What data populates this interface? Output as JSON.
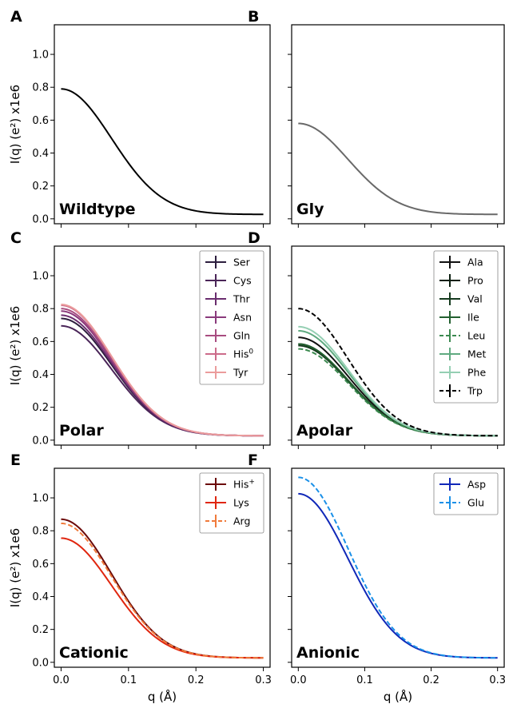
{
  "chart_data": [
    {
      "type": "line",
      "panel_letter": "A",
      "panel_title": "Wildtype",
      "xlabel": "",
      "ylabel": "I(q) (e²) x1e6",
      "xlim": [
        -0.01,
        0.31
      ],
      "ylim": [
        -0.03,
        1.18
      ],
      "xticks": [],
      "yticks": [
        "0.0",
        "0.2",
        "0.4",
        "0.6",
        "0.8",
        "1.0"
      ],
      "legend": "none",
      "series": [
        {
          "i0": 0.79,
          "color": "#000000",
          "dash": false,
          "errorbar": false
        }
      ]
    },
    {
      "type": "line",
      "panel_letter": "B",
      "panel_title": "Gly",
      "xlabel": "",
      "ylabel": "",
      "xlim": [
        -0.01,
        0.31
      ],
      "ylim": [
        -0.03,
        1.18
      ],
      "xticks": [],
      "yticks": [],
      "legend": "none",
      "series": [
        {
          "i0": 0.58,
          "color": "#696969",
          "dash": false,
          "errorbar": false
        }
      ]
    },
    {
      "type": "line",
      "panel_letter": "C",
      "panel_title": "Polar",
      "xlabel": "",
      "ylabel": "I(q) (e²) x1e6",
      "xlim": [
        -0.01,
        0.31
      ],
      "ylim": [
        -0.03,
        1.18
      ],
      "xticks": [],
      "yticks": [
        "0.0",
        "0.2",
        "0.4",
        "0.6",
        "0.8",
        "1.0"
      ],
      "legend": "top-right",
      "series": [
        {
          "name": "Ser",
          "name_sup": "",
          "i0": 0.74,
          "color": "#2d1e3e",
          "dash": false,
          "errorbar": true
        },
        {
          "name": "Cys",
          "name_sup": "",
          "i0": 0.695,
          "color": "#4a2558",
          "dash": false,
          "errorbar": true
        },
        {
          "name": "Thr",
          "name_sup": "",
          "i0": 0.76,
          "color": "#6a2d6e",
          "dash": false,
          "errorbar": true
        },
        {
          "name": "Asn",
          "name_sup": "",
          "i0": 0.785,
          "color": "#8a3a7c",
          "dash": false,
          "errorbar": true
        },
        {
          "name": "Gln",
          "name_sup": "",
          "i0": 0.8,
          "color": "#a84c80",
          "dash": false,
          "errorbar": true
        },
        {
          "name": "His",
          "name_sup": "0",
          "i0": 0.82,
          "color": "#cc6b8a",
          "dash": false,
          "errorbar": true
        },
        {
          "name": "Tyr",
          "name_sup": "",
          "i0": 0.825,
          "color": "#eb9c9c",
          "dash": false,
          "errorbar": true
        }
      ]
    },
    {
      "type": "line",
      "panel_letter": "D",
      "panel_title": "Apolar",
      "xlabel": "",
      "ylabel": "",
      "xlim": [
        -0.01,
        0.31
      ],
      "ylim": [
        -0.03,
        1.18
      ],
      "xticks": [],
      "yticks": [],
      "legend": "top-right",
      "series": [
        {
          "name": "Ala",
          "name_sup": "",
          "i0": 0.625,
          "color": "#101010",
          "dash": false,
          "errorbar": true
        },
        {
          "name": "Pro",
          "name_sup": "",
          "i0": 0.585,
          "color": "#0c1f10",
          "dash": false,
          "errorbar": true
        },
        {
          "name": "Val",
          "name_sup": "",
          "i0": 0.575,
          "color": "#153a1e",
          "dash": false,
          "errorbar": true
        },
        {
          "name": "Ile",
          "name_sup": "",
          "i0": 0.585,
          "color": "#236030",
          "dash": false,
          "errorbar": true
        },
        {
          "name": "Leu",
          "name_sup": "",
          "i0": 0.555,
          "color": "#3c8a50",
          "dash": true,
          "errorbar": true
        },
        {
          "name": "Met",
          "name_sup": "",
          "i0": 0.665,
          "color": "#5faa80",
          "dash": false,
          "errorbar": true
        },
        {
          "name": "Phe",
          "name_sup": "",
          "i0": 0.69,
          "color": "#95cfb3",
          "dash": false,
          "errorbar": true
        },
        {
          "name": "Trp",
          "name_sup": "",
          "i0": 0.8,
          "color": "#000000",
          "dash": true,
          "errorbar": true
        }
      ]
    },
    {
      "type": "line",
      "panel_letter": "E",
      "panel_title": "Cationic",
      "xlabel": "q (Å)",
      "ylabel": "I(q) (e²) x1e6",
      "xlim": [
        -0.01,
        0.31
      ],
      "ylim": [
        -0.03,
        1.18
      ],
      "xticks": [
        "0.0",
        "0.1",
        "0.2",
        "0.3"
      ],
      "yticks": [
        "0.0",
        "0.2",
        "0.4",
        "0.6",
        "0.8",
        "1.0"
      ],
      "legend": "top-right",
      "series": [
        {
          "name": "His",
          "name_sup": "+",
          "i0": 0.87,
          "color": "#6b0a0a",
          "dash": false,
          "errorbar": true
        },
        {
          "name": "Lys",
          "name_sup": "",
          "i0": 0.755,
          "color": "#e0260f",
          "dash": false,
          "errorbar": true
        },
        {
          "name": "Arg",
          "name_sup": "",
          "i0": 0.845,
          "color": "#f07a3a",
          "dash": true,
          "errorbar": true
        }
      ]
    },
    {
      "type": "line",
      "panel_letter": "F",
      "panel_title": "Anionic",
      "xlabel": "q (Å)",
      "ylabel": "",
      "xlim": [
        -0.01,
        0.31
      ],
      "ylim": [
        -0.03,
        1.18
      ],
      "xticks": [
        "0.0",
        "0.1",
        "0.2",
        "0.3"
      ],
      "yticks": [],
      "legend": "top-right",
      "series": [
        {
          "name": "Asp",
          "name_sup": "",
          "i0": 1.025,
          "color": "#1028b8",
          "dash": false,
          "errorbar": true
        },
        {
          "name": "Glu",
          "name_sup": "",
          "i0": 1.125,
          "color": "#1a90e8",
          "dash": true,
          "errorbar": true
        }
      ]
    }
  ]
}
